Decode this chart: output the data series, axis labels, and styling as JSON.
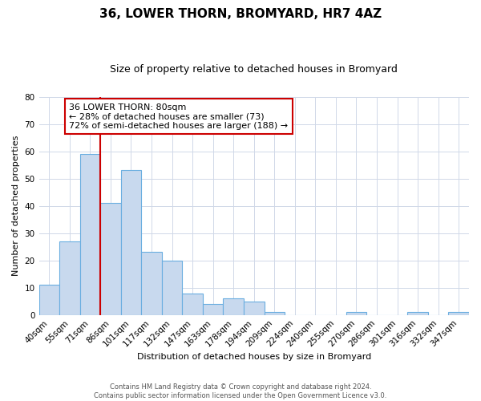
{
  "title": "36, LOWER THORN, BROMYARD, HR7 4AZ",
  "subtitle": "Size of property relative to detached houses in Bromyard",
  "xlabel": "Distribution of detached houses by size in Bromyard",
  "ylabel": "Number of detached properties",
  "bar_labels": [
    "40sqm",
    "55sqm",
    "71sqm",
    "86sqm",
    "101sqm",
    "117sqm",
    "132sqm",
    "147sqm",
    "163sqm",
    "178sqm",
    "194sqm",
    "209sqm",
    "224sqm",
    "240sqm",
    "255sqm",
    "270sqm",
    "286sqm",
    "301sqm",
    "316sqm",
    "332sqm",
    "347sqm"
  ],
  "bar_values": [
    11,
    27,
    59,
    41,
    53,
    23,
    20,
    8,
    4,
    6,
    5,
    1,
    0,
    0,
    0,
    1,
    0,
    0,
    1,
    0,
    1
  ],
  "bar_color": "#c8d9ee",
  "bar_edge_color": "#6aaee0",
  "ylim": [
    0,
    80
  ],
  "yticks": [
    0,
    10,
    20,
    30,
    40,
    50,
    60,
    70,
    80
  ],
  "vline_color": "#cc0000",
  "annotation_text": "36 LOWER THORN: 80sqm\n← 28% of detached houses are smaller (73)\n72% of semi-detached houses are larger (188) →",
  "annotation_box_edgecolor": "#cc0000",
  "footer_line1": "Contains HM Land Registry data © Crown copyright and database right 2024.",
  "footer_line2": "Contains public sector information licensed under the Open Government Licence v3.0.",
  "background_color": "#ffffff",
  "grid_color": "#d0d8e8",
  "title_fontsize": 11,
  "subtitle_fontsize": 9,
  "axis_label_fontsize": 8,
  "tick_fontsize": 7.5,
  "annotation_fontsize": 8,
  "footer_fontsize": 6
}
